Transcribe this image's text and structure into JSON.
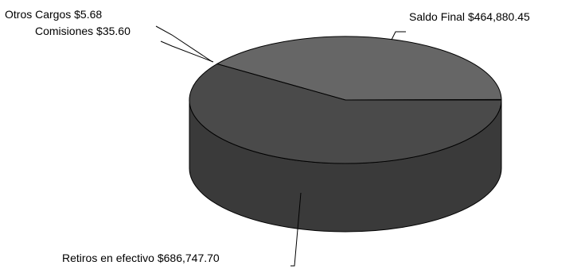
{
  "chart_data": {
    "type": "pie",
    "style": "3d",
    "slices": [
      {
        "label": "Saldo Final",
        "value_text": "$464,880.45",
        "value": 464880.45,
        "color": "#666666"
      },
      {
        "label": "Retiros en efectivo",
        "value_text": "$686,747.70",
        "value": 686747.7,
        "color": "#4a4a4a"
      },
      {
        "label": "Comisiones",
        "value_text": "$35.60",
        "value": 35.6,
        "color": "#5a5a5a"
      },
      {
        "label": "Otros Cargos",
        "value_text": "$5.68",
        "value": 5.68,
        "color": "#5a5a5a"
      }
    ],
    "side_color": "#3a3a3a",
    "outline_color": "#000000"
  }
}
